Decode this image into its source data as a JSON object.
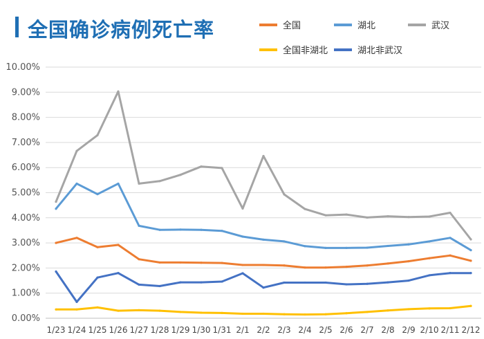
{
  "chart_data": {
    "type": "line",
    "title": "全国确诊病例死亡率",
    "xlabel": "",
    "ylabel": "",
    "ylim": [
      0,
      10
    ],
    "y_tick_values": [
      0,
      1,
      2,
      3,
      4,
      5,
      6,
      7,
      8,
      9,
      10
    ],
    "y_tick_labels": [
      "0.00%",
      "1.00%",
      "2.00%",
      "3.00%",
      "4.00%",
      "5.00%",
      "6.00%",
      "7.00%",
      "8.00%",
      "9.00%",
      "10.00%"
    ],
    "grid": true,
    "legend_position": "top-right",
    "categories": [
      "1/23",
      "1/24",
      "1/25",
      "1/26",
      "1/27",
      "1/28",
      "1/29",
      "1/30",
      "1/31",
      "2/1",
      "2/2",
      "2/3",
      "2/4",
      "2/5",
      "2/6",
      "2/7",
      "2/8",
      "2/9",
      "2/10",
      "2/11",
      "2/12"
    ],
    "series": [
      {
        "name": "全国",
        "color": "#ed7d31",
        "values": [
          3.0,
          3.2,
          2.83,
          2.92,
          2.35,
          2.22,
          2.22,
          2.21,
          2.2,
          2.12,
          2.12,
          2.1,
          2.02,
          2.02,
          2.05,
          2.1,
          2.18,
          2.27,
          2.39,
          2.5,
          2.29
        ]
      },
      {
        "name": "湖北",
        "color": "#5b9bd5",
        "values": [
          4.36,
          5.36,
          4.94,
          5.36,
          3.68,
          3.52,
          3.53,
          3.52,
          3.48,
          3.25,
          3.13,
          3.06,
          2.87,
          2.8,
          2.8,
          2.81,
          2.88,
          2.94,
          3.06,
          3.2,
          2.71
        ]
      },
      {
        "name": "武汉",
        "color": "#a5a5a5",
        "values": [
          4.64,
          6.66,
          7.29,
          9.03,
          5.36,
          5.46,
          5.71,
          6.04,
          5.98,
          4.37,
          6.46,
          4.93,
          4.35,
          4.1,
          4.13,
          4.01,
          4.06,
          4.03,
          4.05,
          4.2,
          3.14
        ]
      },
      {
        "name": "全国非湖北",
        "color": "#ffc000",
        "values": [
          0.35,
          0.35,
          0.43,
          0.3,
          0.32,
          0.3,
          0.25,
          0.22,
          0.21,
          0.18,
          0.18,
          0.16,
          0.15,
          0.16,
          0.2,
          0.25,
          0.31,
          0.36,
          0.39,
          0.4,
          0.49
        ]
      },
      {
        "name": "湖北非武汉",
        "color": "#4472c4",
        "values": [
          1.86,
          0.65,
          1.62,
          1.8,
          1.34,
          1.28,
          1.43,
          1.43,
          1.46,
          1.79,
          1.22,
          1.42,
          1.42,
          1.42,
          1.35,
          1.37,
          1.43,
          1.5,
          1.71,
          1.8,
          1.8
        ]
      }
    ]
  }
}
